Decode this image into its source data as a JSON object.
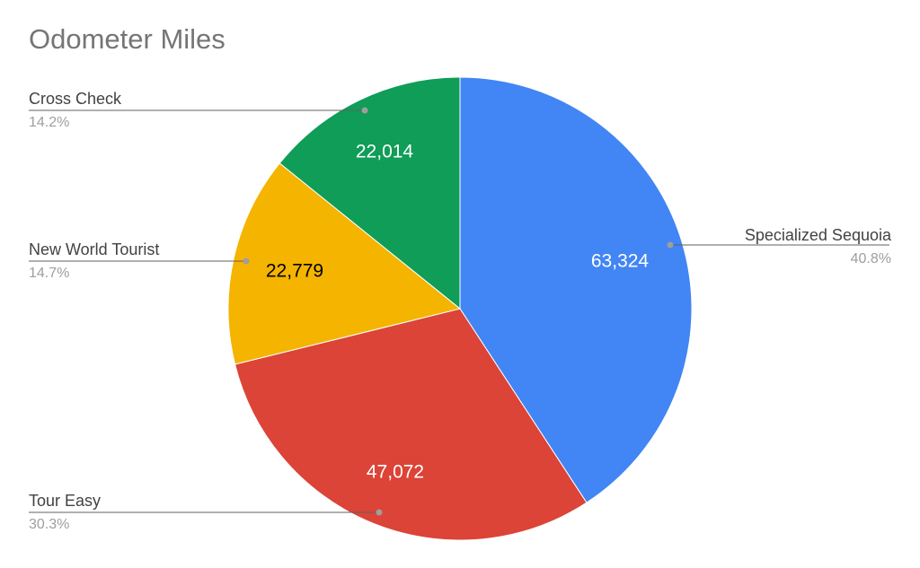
{
  "chart_data": {
    "type": "pie",
    "title": "Odometer Miles",
    "categories": [
      "Specialized Sequoia",
      "Tour Easy",
      "New World Tourist",
      "Cross Check"
    ],
    "values": [
      63324,
      47072,
      22779,
      22014
    ],
    "value_labels": [
      "63,324",
      "47,072",
      "22,779",
      "22,014"
    ],
    "percent_labels": [
      "40.8%",
      "30.3%",
      "14.7%",
      "14.2%"
    ],
    "colors": [
      "#4285f4",
      "#db4437",
      "#f4b400",
      "#0f9d58"
    ],
    "value_label_colors": [
      "#ffffff",
      "#ffffff",
      "#000000",
      "#ffffff"
    ],
    "legend": "callouts",
    "start_angle": "12 o'clock",
    "direction": "clockwise"
  }
}
